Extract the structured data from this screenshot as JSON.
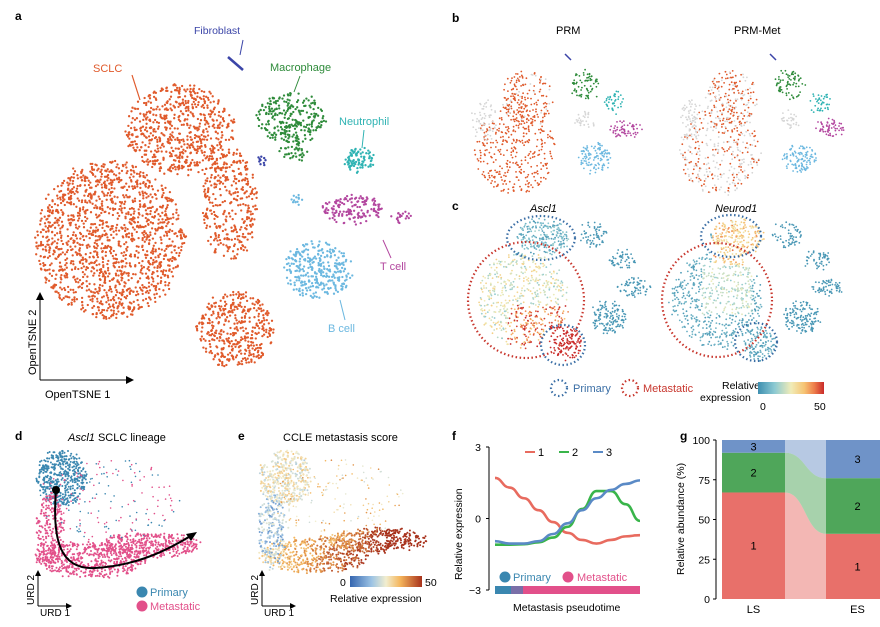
{
  "panels": {
    "a": "a",
    "b": "b",
    "c": "c",
    "d": "d",
    "e": "e",
    "f": "f",
    "g": "g"
  },
  "colors": {
    "sclc": "#e05a2b",
    "fibroblast": "#3b45a8",
    "macrophage": "#2e8b3a",
    "neutrophil": "#2fb3b3",
    "tcell": "#b3479f",
    "bcell": "#6cb8e0",
    "gray": "#d6d6d6",
    "primary": "#3a87b0",
    "metastatic": "#e2508a",
    "line1": "#e86b5f",
    "line2": "#39b54a",
    "line3": "#5a8ac6",
    "g1": "#e8706a",
    "g2": "#4fa65a",
    "g3": "#6f93c8"
  },
  "panel_a": {
    "labels": {
      "sclc": "SCLC",
      "fibroblast": "Fibroblast",
      "macrophage": "Macrophage",
      "neutrophil": "Neutrophil",
      "tcell": "T cell",
      "bcell": "B cell"
    },
    "axis_y": "OpenTSNE 2",
    "axis_x": "OpenTSNE 1"
  },
  "panel_b": {
    "left_title": "PRM",
    "right_title": "PRM-Met"
  },
  "panel_c": {
    "left_title": "Ascl1",
    "right_title": "Neurod1",
    "legend_primary": "Primary",
    "legend_metastatic": "Metastatic",
    "colorbar_label_1": "Relative",
    "colorbar_label_2": "expression",
    "colorbar_min": "0",
    "colorbar_max": "50"
  },
  "panel_d": {
    "title": "Ascl1 SCLC lineage",
    "title_italic": "Ascl1",
    "title_rest": " SCLC lineage",
    "axis_y": "URD 2",
    "axis_x": "URD 1",
    "legend_primary": "Primary",
    "legend_metastatic": "Metastatic"
  },
  "panel_e": {
    "title": "CCLE metastasis score",
    "axis_y": "URD 2",
    "axis_x": "URD 1",
    "colorbar_min": "0",
    "colorbar_max": "50",
    "colorbar_label": "Relative expression"
  },
  "chart_data": [
    {
      "type": "line",
      "panel": "f",
      "ylabel": "Relative expression",
      "xlabel": "Metastasis pseudotime",
      "ylim": [
        -3,
        3
      ],
      "yticks": [
        "3",
        "0",
        "−3"
      ],
      "x": [
        0,
        0.1,
        0.2,
        0.3,
        0.4,
        0.5,
        0.6,
        0.7,
        0.8,
        0.9,
        1.0
      ],
      "series": [
        {
          "name": "1",
          "values": [
            1.7,
            1.3,
            0.85,
            0.35,
            -0.15,
            -0.6,
            -0.9,
            -1.05,
            -0.9,
            -0.75,
            -0.7
          ]
        },
        {
          "name": "2",
          "values": [
            -1.1,
            -1.1,
            -1.08,
            -1.0,
            -0.8,
            -0.35,
            0.4,
            1.15,
            1.15,
            0.6,
            -0.1
          ]
        },
        {
          "name": "3",
          "values": [
            -0.95,
            -1.05,
            -1.05,
            -0.95,
            -0.65,
            -0.2,
            0.35,
            0.85,
            1.2,
            1.45,
            1.6
          ]
        }
      ],
      "legend_primary": "Primary",
      "legend_metastatic": "Metastatic"
    },
    {
      "type": "bar",
      "panel": "g",
      "ylabel": "Relative abundance (%)",
      "ylim": [
        0,
        100
      ],
      "yticks": [
        "0",
        "25",
        "50",
        "75",
        "100"
      ],
      "categories": [
        "LS",
        "ES"
      ],
      "series": [
        {
          "name": "1",
          "values": [
            67,
            41
          ]
        },
        {
          "name": "2",
          "values": [
            25,
            35
          ]
        },
        {
          "name": "3",
          "values": [
            8,
            24
          ]
        }
      ]
    }
  ]
}
